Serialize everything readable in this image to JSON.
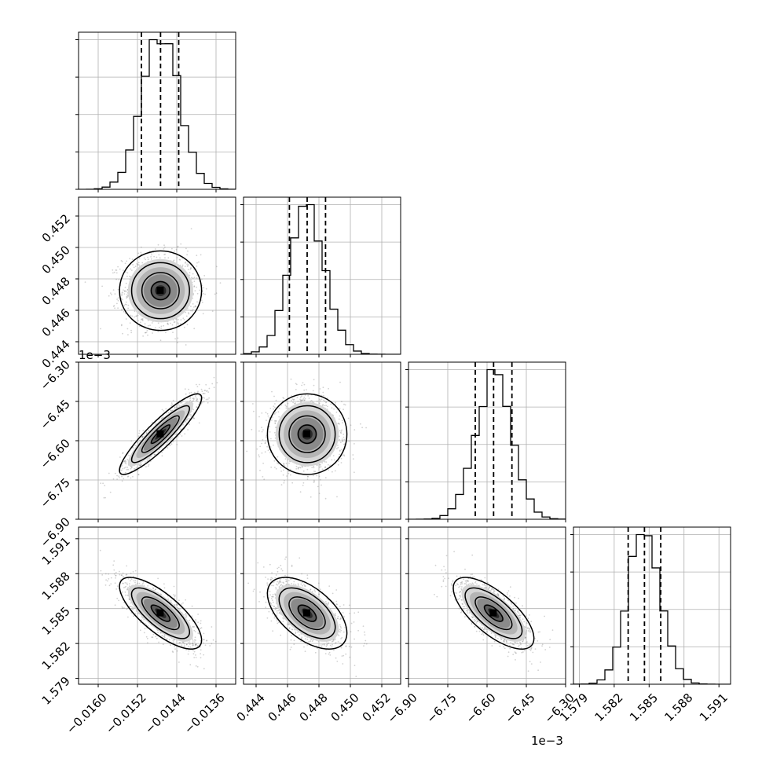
{
  "chart_data": {
    "type": "corner",
    "params": [
      {
        "range": [
          -0.0164,
          -0.0132
        ],
        "ticks": [
          -0.016,
          -0.0152,
          -0.0144,
          -0.0136
        ],
        "tick_labels": [
          "−0.0160",
          "−0.0152",
          "−0.0144",
          "−0.0136"
        ],
        "median": -0.01473,
        "q16": -0.01512,
        "q84": -0.01436,
        "sigma": 0.00038
      },
      {
        "range": [
          0.4432,
          0.4532
        ],
        "ticks": [
          0.444,
          0.446,
          0.448,
          0.45,
          0.452
        ],
        "tick_labels": [
          "0.444",
          "0.446",
          "0.448",
          "0.450",
          "0.452"
        ],
        "median": 0.44725,
        "q16": 0.44612,
        "q84": 0.44842,
        "sigma": 0.00115
      },
      {
        "range": [
          -6.9,
          -6.3
        ],
        "ticks": [
          -6.9,
          -6.75,
          -6.6,
          -6.45,
          -6.3
        ],
        "tick_labels": [
          "−6.90",
          "−6.75",
          "−6.60",
          "−6.45",
          "−6.30"
        ],
        "offset_text": "1e−3",
        "median": -6.575,
        "q16": -6.645,
        "q84": -6.505,
        "sigma": 0.07
      },
      {
        "range": [
          1.5785,
          1.592
        ],
        "ticks": [
          1.579,
          1.582,
          1.585,
          1.588,
          1.591
        ],
        "tick_labels": [
          "1.579",
          "1.582",
          "1.585",
          "1.588",
          "1.591"
        ],
        "median": 1.5846,
        "q16": 1.5832,
        "q84": 1.586,
        "sigma": 0.0014
      }
    ],
    "correlations": [
      {
        "i": 1,
        "j": 0,
        "rho": 0.0
      },
      {
        "i": 2,
        "j": 0,
        "rho": 0.9
      },
      {
        "i": 2,
        "j": 1,
        "rho": 0.0
      },
      {
        "i": 3,
        "j": 0,
        "rho": -0.75
      },
      {
        "i": 3,
        "j": 1,
        "rho": -0.55
      },
      {
        "i": 3,
        "j": 2,
        "rho": -0.7
      }
    ],
    "grid": true,
    "colors": {
      "scatter": "#7f7f7f",
      "line": "#000000",
      "grid": "#b0b0b0"
    }
  }
}
